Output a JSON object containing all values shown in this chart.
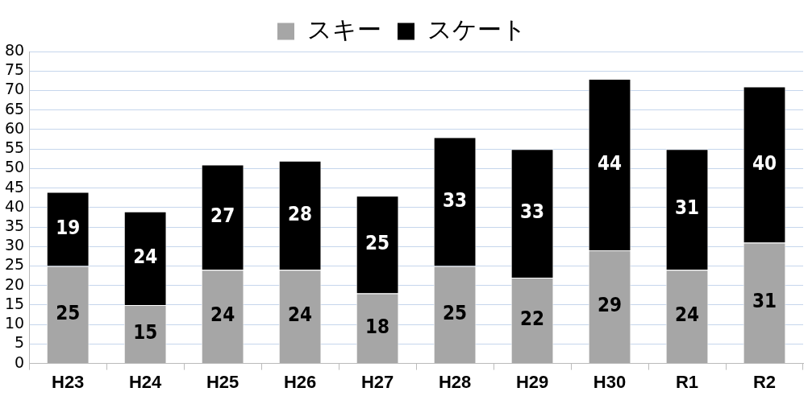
{
  "chart_data": {
    "type": "bar",
    "stacked": true,
    "categories": [
      "H23",
      "H24",
      "H25",
      "H26",
      "H27",
      "H28",
      "H29",
      "H30",
      "R1",
      "R2"
    ],
    "series": [
      {
        "name": "スキー",
        "color": "#a6a6a6",
        "values": [
          25,
          15,
          24,
          24,
          18,
          25,
          22,
          29,
          24,
          31
        ]
      },
      {
        "name": "スケート",
        "color": "#000000",
        "values": [
          19,
          24,
          27,
          28,
          25,
          33,
          33,
          44,
          31,
          40
        ]
      }
    ],
    "ylim": [
      0,
      80
    ],
    "yticks": [
      0,
      5,
      10,
      15,
      20,
      25,
      30,
      35,
      40,
      45,
      50,
      55,
      60,
      65,
      70,
      75,
      80
    ],
    "grid": "y",
    "legend": "top",
    "data_labels": true
  }
}
